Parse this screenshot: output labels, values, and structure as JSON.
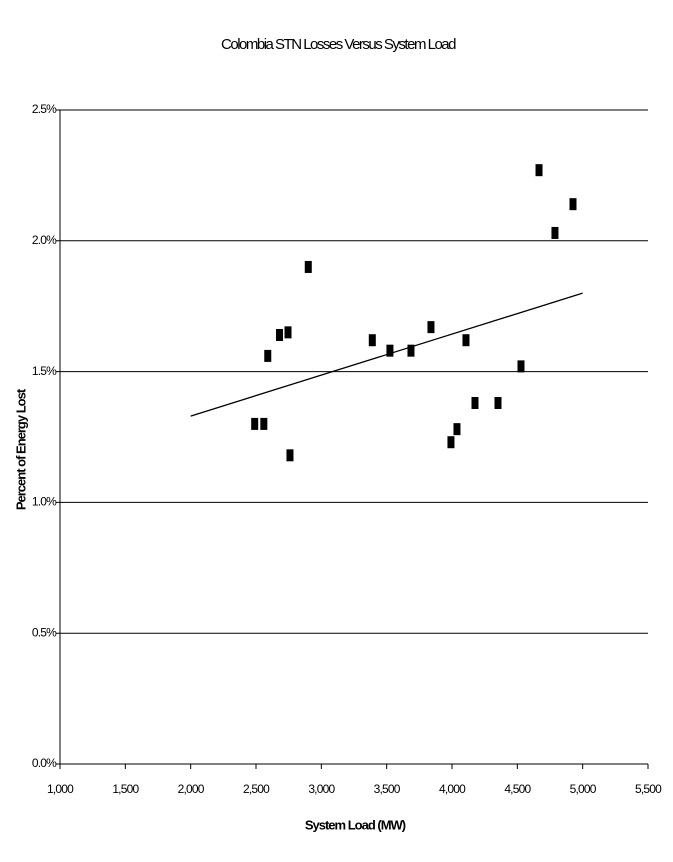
{
  "chart_data": {
    "type": "scatter",
    "title": "Colombia STN Losses Versus System Load",
    "xlabel": "System Load (MW)",
    "ylabel": "Percent of Energy Lost",
    "series": [
      {
        "color": "#000000",
        "x": [
          2490,
          2560,
          2590,
          2680,
          2745,
          2760,
          2900,
          3390,
          3525,
          3686,
          3839,
          3992,
          4038,
          4107,
          4176,
          4352,
          4528,
          4666,
          4788,
          4926
        ],
        "values": [
          1.3,
          1.3,
          1.56,
          1.64,
          1.65,
          1.18,
          1.9,
          1.62,
          1.58,
          1.58,
          1.67,
          1.23,
          1.28,
          1.62,
          1.38,
          1.38,
          1.52,
          2.27,
          2.03,
          2.14
        ]
      }
    ],
    "trendline": {
      "color": "#000000",
      "x": [
        2000,
        5000
      ],
      "values": [
        1.33,
        1.8
      ]
    },
    "xlim": [
      1000,
      5500
    ],
    "xticks": [
      {
        "value": 1000,
        "label": "1,000"
      },
      {
        "value": 1500,
        "label": "1,500"
      },
      {
        "value": 2000,
        "label": "2,000"
      },
      {
        "value": 2500,
        "label": "2,500"
      },
      {
        "value": 3000,
        "label": "3,000"
      },
      {
        "value": 3500,
        "label": "3,500"
      },
      {
        "value": 4000,
        "label": "4,000"
      },
      {
        "value": 4500,
        "label": "4,500"
      },
      {
        "value": 5000,
        "label": "5,000"
      },
      {
        "value": 5500,
        "label": "5,500"
      }
    ],
    "ylim": [
      0,
      2.5
    ],
    "yticks": [
      {
        "value": 0,
        "label": "0.0%"
      },
      {
        "value": 0.5,
        "label": "0.5%"
      },
      {
        "value": 1.0,
        "label": "1.0%"
      },
      {
        "value": 1.5,
        "label": "1.5%"
      },
      {
        "value": 2.0,
        "label": "2.0%"
      },
      {
        "value": 2.5,
        "label": "2.5%"
      }
    ],
    "grid": true
  }
}
